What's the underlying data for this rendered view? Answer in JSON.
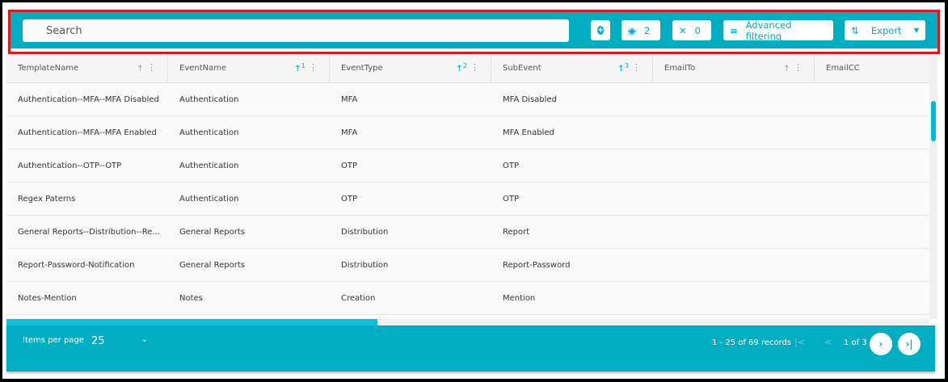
{
  "toolbar": {
    "search_placeholder": "Search",
    "add_icon": "plus-circle-icon",
    "hidden_count": "2",
    "pinned_count": "0",
    "advanced_filtering": "Advanced filtering",
    "export": "Export"
  },
  "columns": [
    {
      "label": "TemplateName",
      "sort": "",
      "active": false
    },
    {
      "label": "EventName",
      "sort": "1",
      "active": true
    },
    {
      "label": "EventType",
      "sort": "2",
      "active": true
    },
    {
      "label": "SubEvent",
      "sort": "3",
      "active": true
    },
    {
      "label": "EmailTo",
      "sort": "",
      "active": false
    },
    {
      "label": "EmailCC",
      "sort": "",
      "active": false
    }
  ],
  "rows": [
    [
      "Authentication--MFA--MFA Disabled",
      "Authentication",
      "MFA",
      "MFA Disabled",
      "",
      ""
    ],
    [
      "Authentication--MFA--MFA Enabled",
      "Authentication",
      "MFA",
      "MFA Enabled",
      "",
      ""
    ],
    [
      "Authentication--OTP--OTP",
      "Authentication",
      "OTP",
      "OTP",
      "",
      ""
    ],
    [
      "Regex Paterns",
      "Authentication",
      "OTP",
      "OTP",
      "",
      ""
    ],
    [
      "General Reports--Distribution--Re...",
      "General Reports",
      "Distribution",
      "Report",
      "",
      ""
    ],
    [
      "Report-Password-Notification",
      "General Reports",
      "Distribution",
      "Report-Password",
      "",
      ""
    ],
    [
      "Notes-Mention",
      "Notes",
      "Creation",
      "Mention",
      "",
      ""
    ]
  ],
  "footer": {
    "items_per_page_label": "Items per page",
    "items_per_page": "25",
    "records": "1 - 25 of 69 records",
    "page": "1 of 3"
  },
  "colors": {
    "accent": "#00adc1",
    "highlight": "#e3161f"
  }
}
